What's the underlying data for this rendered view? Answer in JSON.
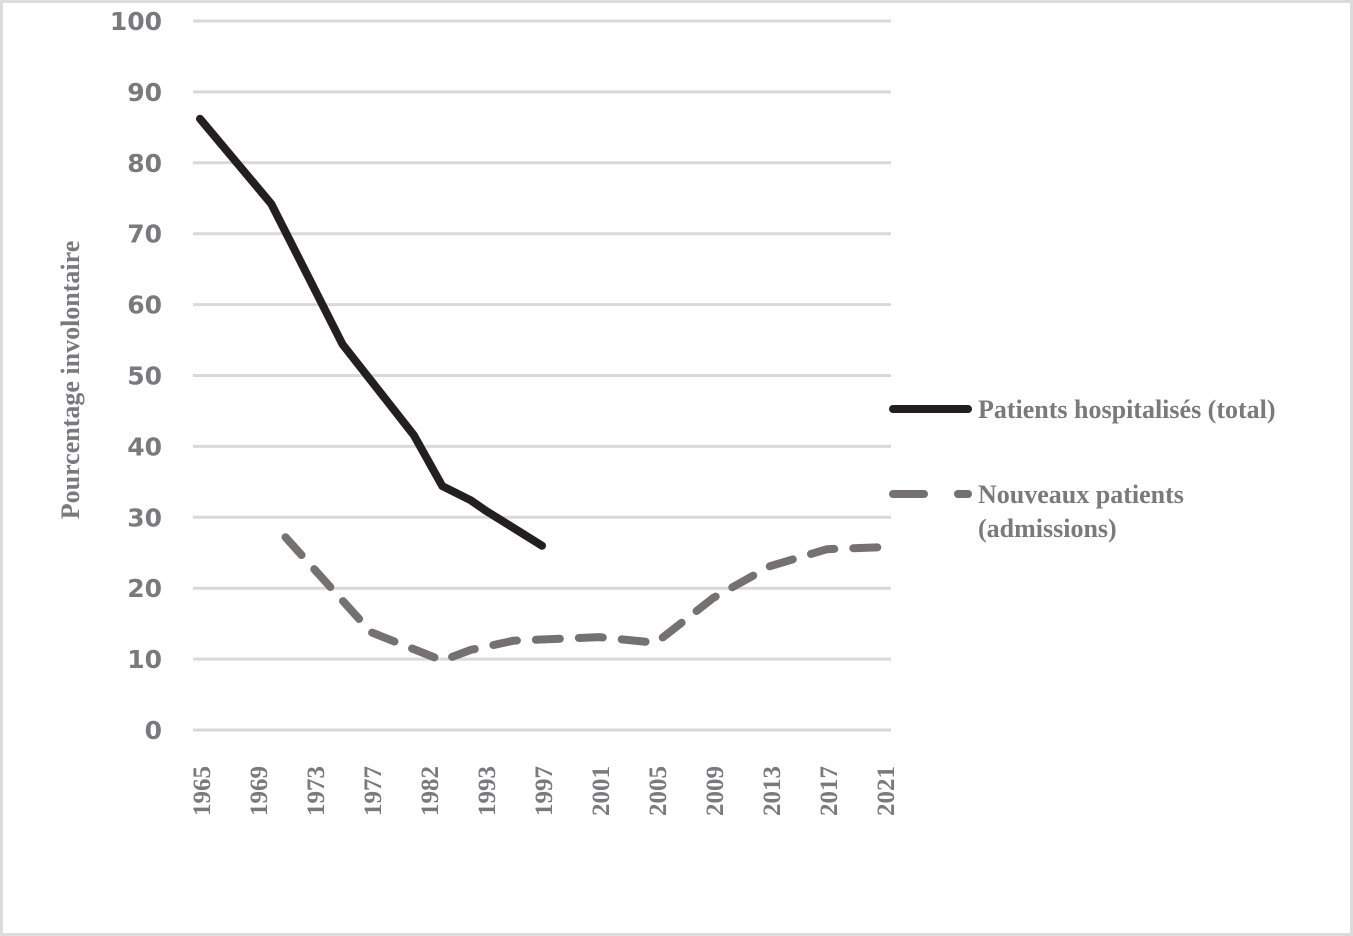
{
  "chart_data": {
    "type": "line",
    "title": "",
    "xlabel": "",
    "ylabel": "Pourcentage involontaire",
    "ylim": [
      0,
      100
    ],
    "yticks": [
      0,
      10,
      20,
      30,
      40,
      50,
      60,
      70,
      80,
      90,
      100
    ],
    "grid": true,
    "legend_position": "right",
    "categories": [
      "1965",
      "1969",
      "1973",
      "1977",
      "1982",
      "1993",
      "1997",
      "2001",
      "2005",
      "2009",
      "2013",
      "2017",
      "2021"
    ],
    "x_note": "Category axis; each labeled tick spans two plotting slots (index 0-24, labels at even indices).",
    "series": [
      {
        "name": "Patients hospitalisés (total)",
        "style": "solid",
        "color": "#231f20",
        "points": [
          {
            "idx": 0,
            "y": 86.2
          },
          {
            "idx": 2.5,
            "y": 74.2
          },
          {
            "idx": 5,
            "y": 54.4
          },
          {
            "idx": 7.5,
            "y": 41.6
          },
          {
            "idx": 8.5,
            "y": 34.4
          },
          {
            "idx": 9.5,
            "y": 32.4
          },
          {
            "idx": 10,
            "y": 31.0
          },
          {
            "idx": 12,
            "y": 26.0
          }
        ]
      },
      {
        "name": "Nouveaux patients (admissions)",
        "style": "dashed",
        "color": "#767171",
        "points": [
          {
            "idx": 3,
            "y": 27.2
          },
          {
            "idx": 6,
            "y": 13.8
          },
          {
            "idx": 8.5,
            "y": 9.8
          },
          {
            "idx": 9.5,
            "y": 11.3
          },
          {
            "idx": 11,
            "y": 12.6
          },
          {
            "idx": 14,
            "y": 13.1
          },
          {
            "idx": 16,
            "y": 12.3
          },
          {
            "idx": 18,
            "y": 18.6
          },
          {
            "idx": 20,
            "y": 23.1
          },
          {
            "idx": 22,
            "y": 25.5
          },
          {
            "idx": 24,
            "y": 25.8
          }
        ]
      }
    ]
  },
  "legend": {
    "items": [
      {
        "label_lines": [
          "Patients hospitalisés (total)"
        ]
      },
      {
        "label_lines": [
          "Nouveaux patients",
          "(admissions)"
        ]
      }
    ]
  },
  "colors": {
    "tick_text": "#7a7a7c",
    "gridline": "#d9d9d9",
    "border": "#dcdcdc"
  }
}
